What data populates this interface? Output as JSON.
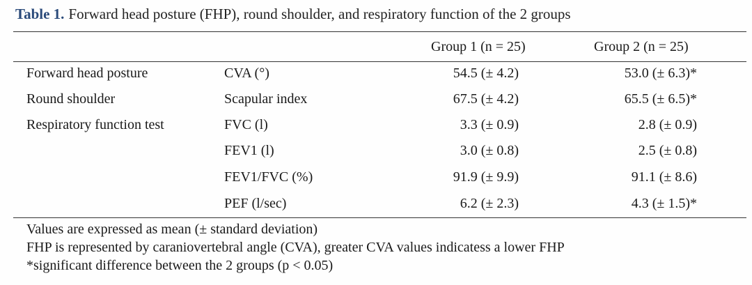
{
  "caption": {
    "label": "Table 1.",
    "text": "Forward head posture (FHP), round shoulder, and respiratory function of the 2 groups"
  },
  "table": {
    "headers": {
      "group1": "Group 1 (n = 25)",
      "group2": "Group 2 (n = 25)"
    },
    "rows": [
      {
        "label": "Forward head posture",
        "measure": "CVA (°)",
        "group1": "54.5 (± 4.2)",
        "group2": "53.0 (± 6.3)*"
      },
      {
        "label": "Round shoulder",
        "measure": "Scapular index",
        "group1": "67.5 (± 4.2)",
        "group2": "65.5 (± 6.5)*"
      },
      {
        "label": "Respiratory function test",
        "measure": "FVC (l)",
        "group1": "3.3 (± 0.9)",
        "group2": "2.8 (± 0.9)"
      },
      {
        "label": "",
        "measure": "FEV1 (l)",
        "group1": "3.0 (± 0.8)",
        "group2": "2.5 (± 0.8)"
      },
      {
        "label": "",
        "measure": "FEV1/FVC (%)",
        "group1": "91.9 (± 9.9)",
        "group2": "91.1 (± 8.6)"
      },
      {
        "label": "",
        "measure": "PEF (l/sec)",
        "group1": "6.2 (± 2.3)",
        "group2": "4.3 (± 1.5)*"
      }
    ]
  },
  "notes": [
    "Values are expressed as mean (± standard deviation)",
    "FHP is represented by caraniovertebral angle (CVA), greater CVA values indicatess a lower FHP",
    "*significant difference between the 2 groups (p < 0.05)"
  ]
}
